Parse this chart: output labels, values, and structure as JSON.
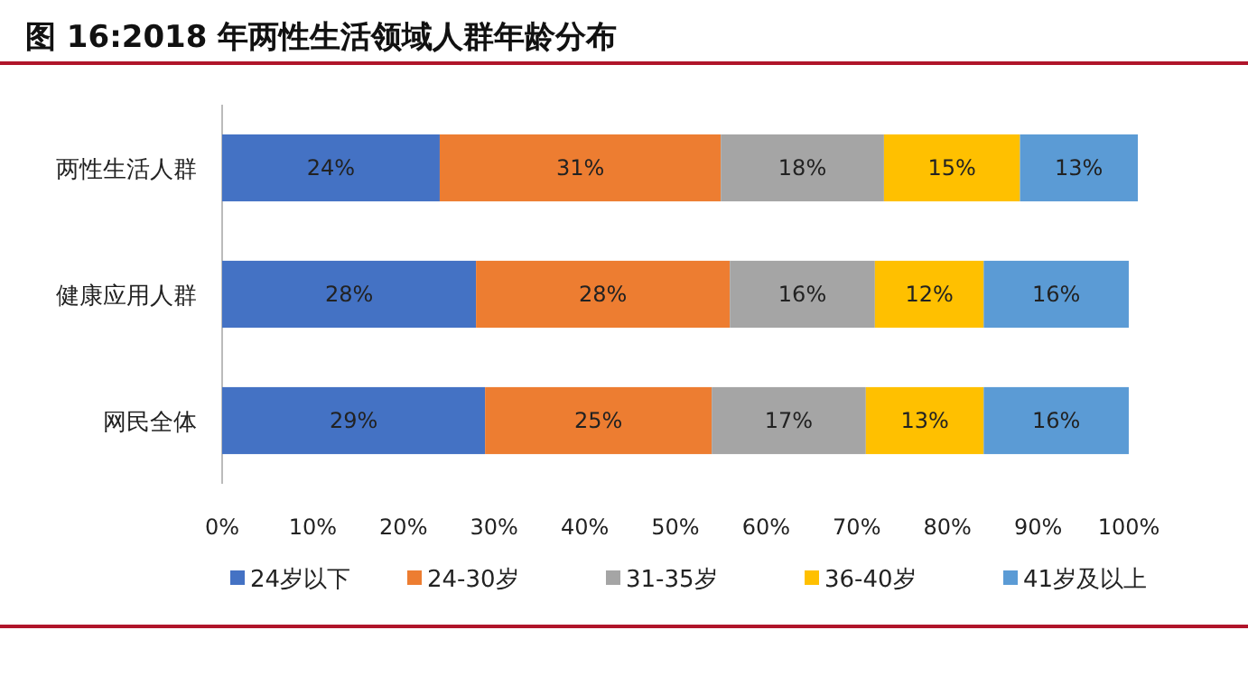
{
  "chart_data": {
    "type": "bar",
    "orientation": "horizontal",
    "stacked": true,
    "title": "图 16:2018 年两性生活领域人群年龄分布",
    "categories": [
      "两性生活人群",
      "健康应用人群",
      "网民全体"
    ],
    "series": [
      {
        "name": "24岁以下",
        "color": "#4472c4",
        "values": [
          24,
          28,
          29
        ]
      },
      {
        "name": "24-30岁",
        "color": "#ed7d31",
        "values": [
          31,
          28,
          25
        ]
      },
      {
        "name": "31-35岁",
        "color": "#a5a5a5",
        "values": [
          18,
          16,
          17
        ]
      },
      {
        "name": "36-40岁",
        "color": "#ffc000",
        "values": [
          15,
          12,
          13
        ]
      },
      {
        "name": "41岁及以上",
        "color": "#5b9bd5",
        "values": [
          13,
          16,
          16
        ]
      }
    ],
    "xlim": [
      0,
      101
    ],
    "xticks": [
      {
        "value": 0,
        "label": "0%"
      },
      {
        "value": 10,
        "label": "10%"
      },
      {
        "value": 20,
        "label": "20%"
      },
      {
        "value": 30,
        "label": "30%"
      },
      {
        "value": 40,
        "label": "40%"
      },
      {
        "value": 50,
        "label": "50%"
      },
      {
        "value": 60,
        "label": "60%"
      },
      {
        "value": 70,
        "label": "70%"
      },
      {
        "value": 80,
        "label": "80%"
      },
      {
        "value": 90,
        "label": "90%"
      },
      {
        "value": 100,
        "label": "100%"
      }
    ],
    "value_labels": [
      [
        "24%",
        "28%",
        "29%"
      ],
      [
        "31%",
        "28%",
        "25%"
      ],
      [
        "18%",
        "16%",
        "17%"
      ],
      [
        "15%",
        "12%",
        "13%"
      ],
      [
        "13%",
        "16%",
        "16%"
      ]
    ],
    "grid": false,
    "legend": "bottom"
  }
}
